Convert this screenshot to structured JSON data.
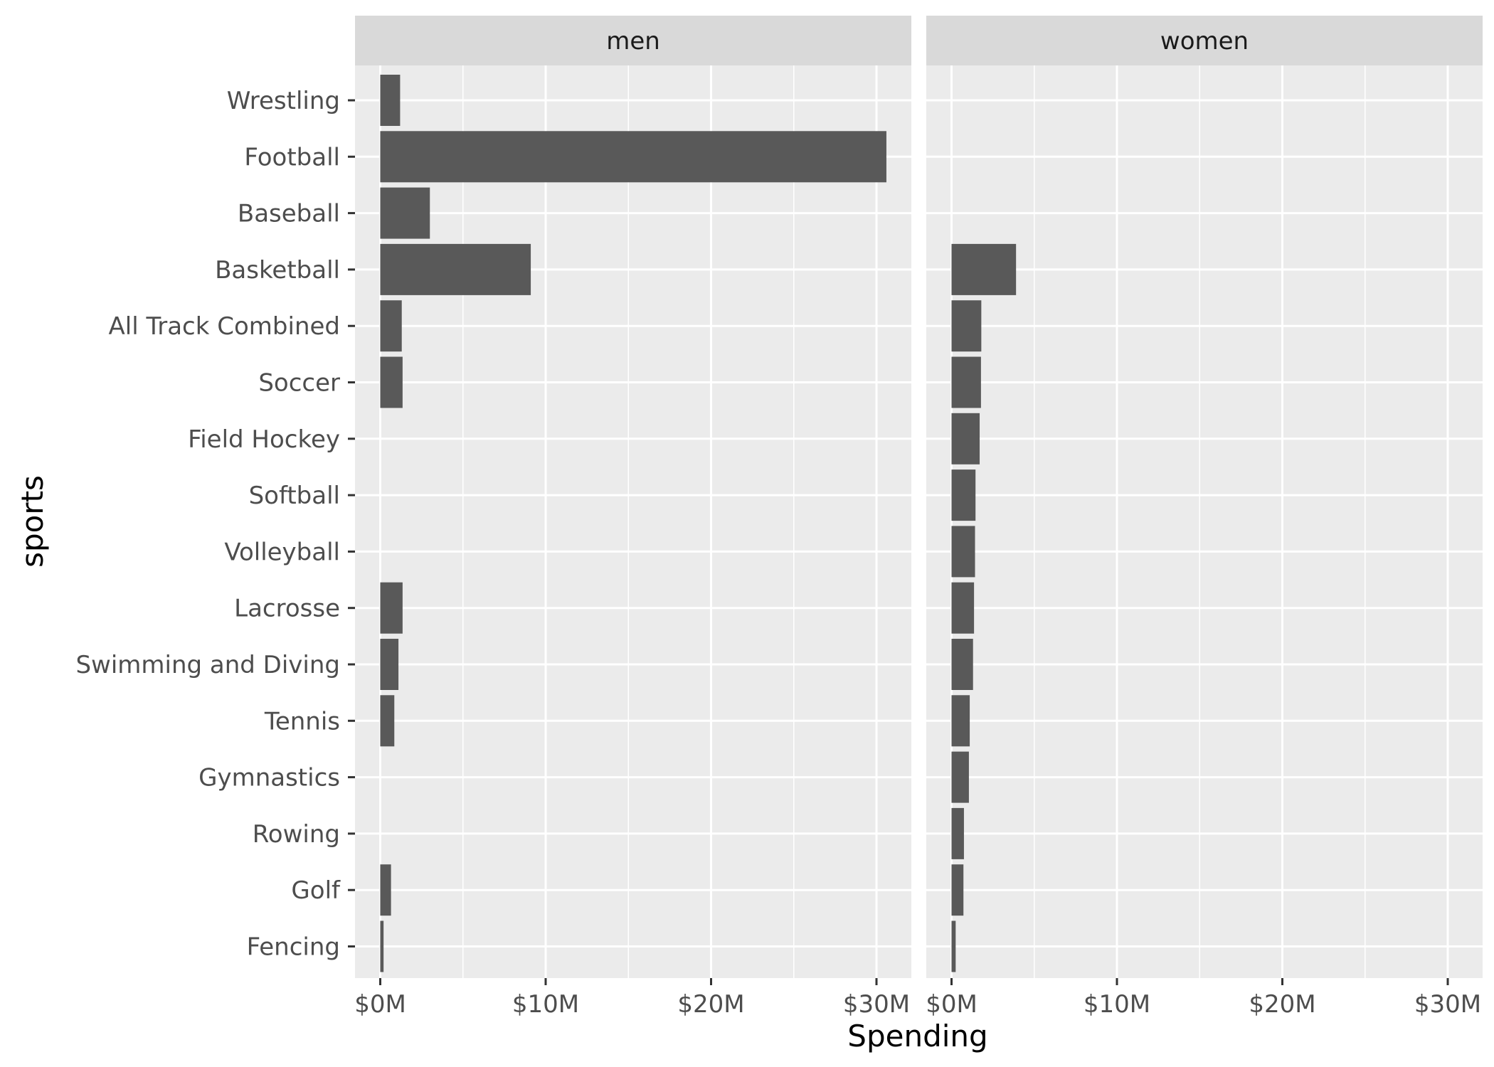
{
  "chart_data": {
    "type": "bar",
    "orientation": "horizontal",
    "facet_by": "sex",
    "xlabel": "Spending",
    "ylabel": "sports",
    "xlim": [
      0,
      32000000
    ],
    "x_ticks": [
      0,
      10000000,
      20000000,
      30000000
    ],
    "x_tick_labels": [
      "$0M",
      "$10M",
      "$20M",
      "$30M"
    ],
    "grid": true,
    "categories": [
      "Wrestling",
      "Football",
      "Baseball",
      "Basketball",
      "All Track Combined",
      "Soccer",
      "Field Hockey",
      "Softball",
      "Volleyball",
      "Lacrosse",
      "Swimming and Diving",
      "Tennis",
      "Gymnastics",
      "Rowing",
      "Golf",
      "Fencing"
    ],
    "panels": [
      {
        "name": "men",
        "values": [
          1200000,
          30600000,
          3000000,
          9100000,
          1300000,
          1350000,
          null,
          null,
          null,
          1350000,
          1100000,
          850000,
          null,
          null,
          650000,
          200000
        ]
      },
      {
        "name": "women",
        "values": [
          null,
          null,
          null,
          3900000,
          1800000,
          1780000,
          1700000,
          1450000,
          1420000,
          1360000,
          1300000,
          1100000,
          1050000,
          750000,
          720000,
          250000
        ]
      }
    ]
  },
  "colors": {
    "panel_background": "#ebebeb",
    "strip_background": "#d9d9d9",
    "grid_line": "#ffffff",
    "bar_fill": "#595959",
    "tick_text": "#4d4d4d",
    "tick_mark": "#333333"
  }
}
